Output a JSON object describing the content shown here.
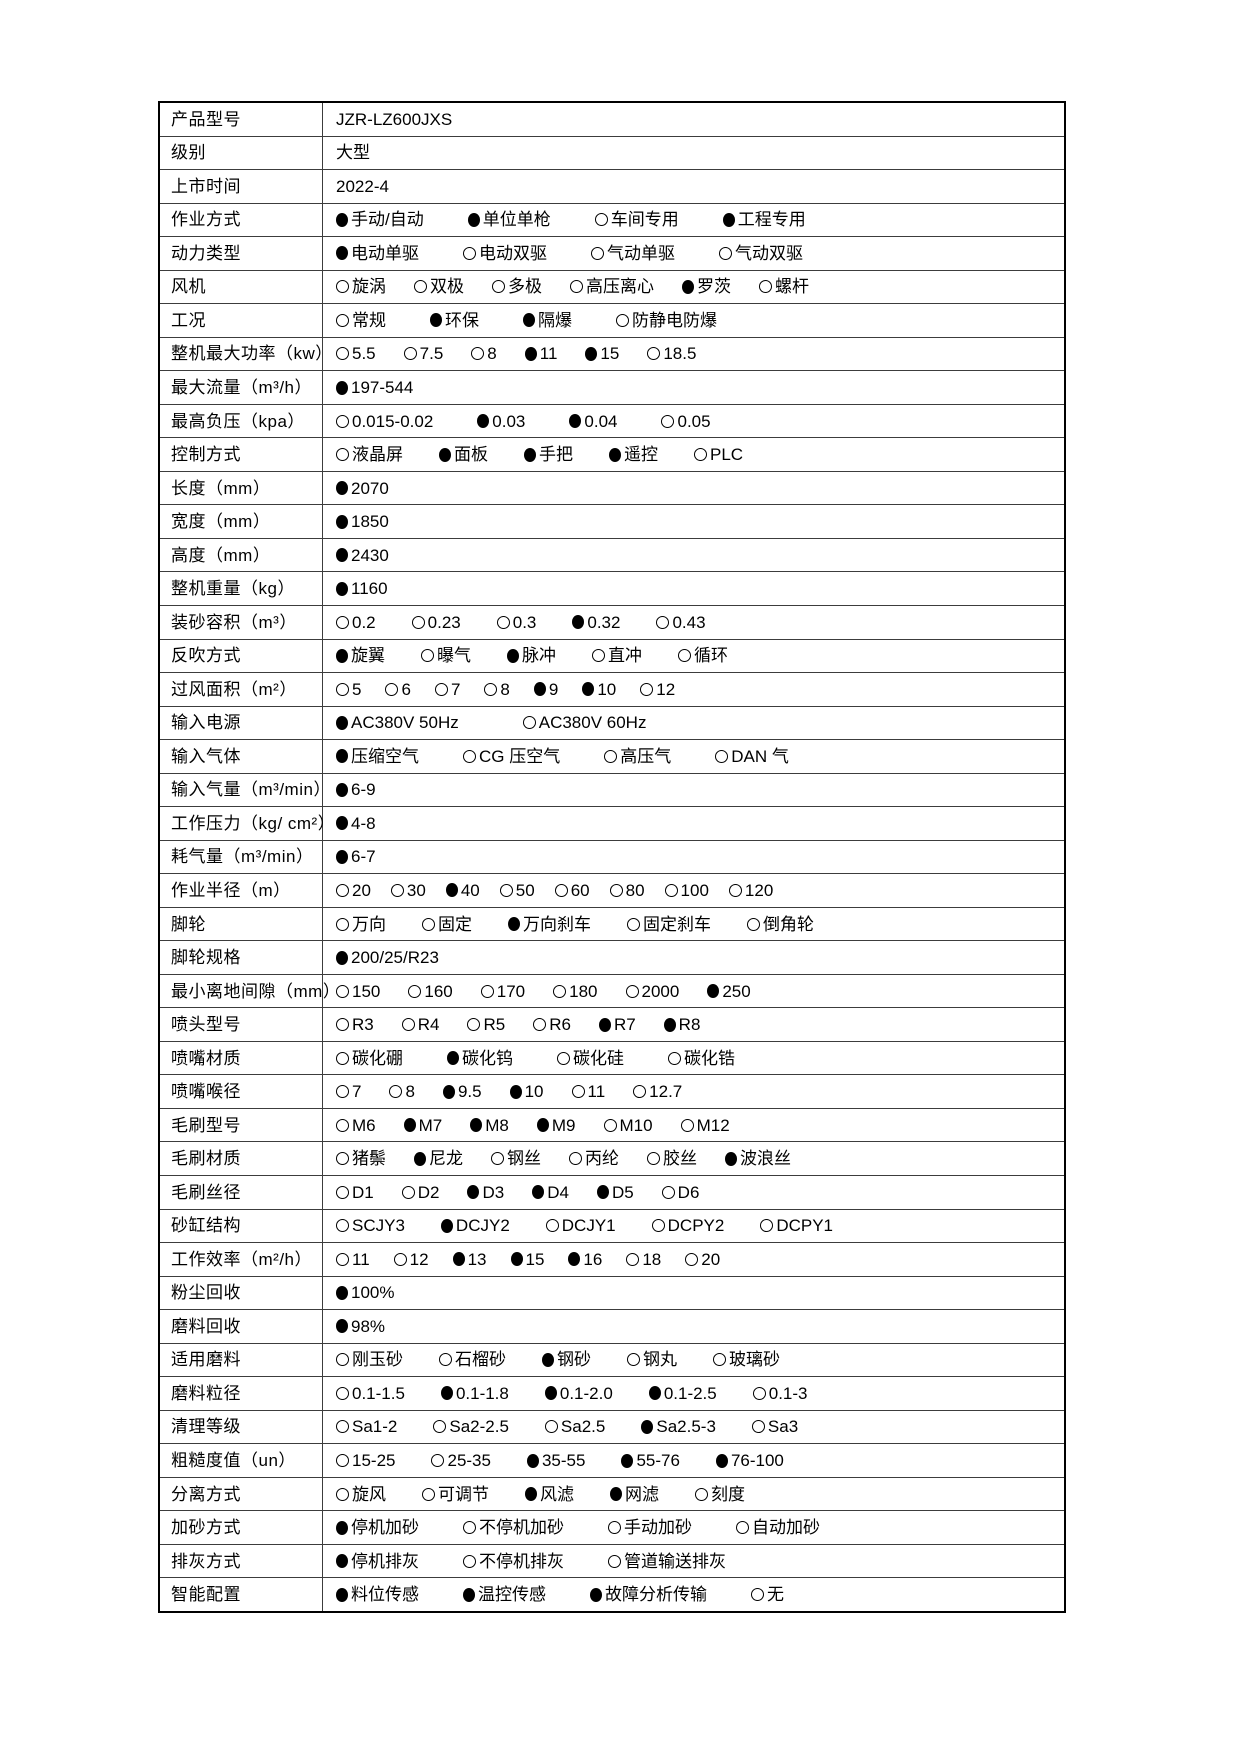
{
  "colors": {
    "border": "#000000",
    "text": "#000000",
    "background": "#ffffff"
  },
  "document": {
    "rows": [
      {
        "label": "产品型号",
        "options": [
          {
            "marker": "none",
            "text": "JZR-LZ600JXS"
          }
        ]
      },
      {
        "label": "级别",
        "options": [
          {
            "marker": "none",
            "text": "大型"
          }
        ]
      },
      {
        "label": "上市时间",
        "options": [
          {
            "marker": "none",
            "text": "2022-4"
          }
        ]
      },
      {
        "label": "作业方式",
        "options": [
          {
            "marker": "filled",
            "text": "手动/自动"
          },
          {
            "marker": "filled",
            "text": "单位单枪"
          },
          {
            "marker": "empty",
            "text": "车间专用"
          },
          {
            "marker": "filled",
            "text": "工程专用"
          }
        ]
      },
      {
        "label": "动力类型",
        "options": [
          {
            "marker": "filled",
            "text": "电动单驱"
          },
          {
            "marker": "empty",
            "text": "电动双驱"
          },
          {
            "marker": "empty",
            "text": "气动单驱"
          },
          {
            "marker": "empty",
            "text": "气动双驱"
          }
        ]
      },
      {
        "label": "风机",
        "options": [
          {
            "marker": "empty",
            "text": "旋涡"
          },
          {
            "marker": "empty",
            "text": "双极"
          },
          {
            "marker": "empty",
            "text": "多极"
          },
          {
            "marker": "empty",
            "text": "高压离心"
          },
          {
            "marker": "filled",
            "text": "罗茨"
          },
          {
            "marker": "empty",
            "text": "螺杆"
          }
        ]
      },
      {
        "label": "工况",
        "options": [
          {
            "marker": "empty",
            "text": "常规"
          },
          {
            "marker": "filled",
            "text": "环保"
          },
          {
            "marker": "filled",
            "text": "隔爆"
          },
          {
            "marker": "empty",
            "text": "防静电防爆"
          }
        ]
      },
      {
        "label": "整机最大功率（kw）",
        "options": [
          {
            "marker": "empty",
            "text": "5.5"
          },
          {
            "marker": "empty",
            "text": "7.5"
          },
          {
            "marker": "empty",
            "text": "8"
          },
          {
            "marker": "filled",
            "text": "11"
          },
          {
            "marker": "filled",
            "text": "15"
          },
          {
            "marker": "empty",
            "text": "18.5"
          }
        ]
      },
      {
        "label": "最大流量（m³/h）",
        "options": [
          {
            "marker": "filled",
            "text": "197-544"
          }
        ]
      },
      {
        "label": "最高负压（kpa）",
        "options": [
          {
            "marker": "empty",
            "text": "0.015-0.02"
          },
          {
            "marker": "filled",
            "text": "0.03"
          },
          {
            "marker": "filled",
            "text": "0.04"
          },
          {
            "marker": "empty",
            "text": "0.05"
          }
        ]
      },
      {
        "label": "控制方式",
        "options": [
          {
            "marker": "empty",
            "text": "液晶屏"
          },
          {
            "marker": "filled",
            "text": "面板"
          },
          {
            "marker": "filled",
            "text": "手把"
          },
          {
            "marker": "filled",
            "text": "遥控"
          },
          {
            "marker": "empty",
            "text": "PLC"
          }
        ]
      },
      {
        "label": "长度（mm）",
        "options": [
          {
            "marker": "filled",
            "text": "2070"
          }
        ]
      },
      {
        "label": "宽度（mm）",
        "options": [
          {
            "marker": "filled",
            "text": "1850"
          }
        ]
      },
      {
        "label": "高度（mm）",
        "options": [
          {
            "marker": "filled",
            "text": "2430"
          }
        ]
      },
      {
        "label": "整机重量（kg）",
        "options": [
          {
            "marker": "filled",
            "text": "1160"
          }
        ]
      },
      {
        "label": "装砂容积（m³）",
        "options": [
          {
            "marker": "empty",
            "text": "0.2"
          },
          {
            "marker": "empty",
            "text": "0.23"
          },
          {
            "marker": "empty",
            "text": "0.3"
          },
          {
            "marker": "filled",
            "text": "0.32"
          },
          {
            "marker": "empty",
            "text": "0.43"
          }
        ]
      },
      {
        "label": "反吹方式",
        "options": [
          {
            "marker": "filled",
            "text": "旋翼"
          },
          {
            "marker": "empty",
            "text": "曝气"
          },
          {
            "marker": "filled",
            "text": "脉冲"
          },
          {
            "marker": "empty",
            "text": "直冲"
          },
          {
            "marker": "empty",
            "text": "循环"
          }
        ]
      },
      {
        "label": "过风面积（m²）",
        "options": [
          {
            "marker": "empty",
            "text": "5"
          },
          {
            "marker": "empty",
            "text": "6"
          },
          {
            "marker": "empty",
            "text": "7"
          },
          {
            "marker": "empty",
            "text": "8"
          },
          {
            "marker": "filled",
            "text": "9"
          },
          {
            "marker": "filled",
            "text": "10"
          },
          {
            "marker": "empty",
            "text": "12"
          }
        ]
      },
      {
        "label": "输入电源",
        "options": [
          {
            "marker": "filled",
            "text": "AC380V 50Hz"
          },
          {
            "marker": "empty",
            "text": "AC380V 60Hz"
          }
        ]
      },
      {
        "label": "输入气体",
        "options": [
          {
            "marker": "filled",
            "text": "压缩空气"
          },
          {
            "marker": "empty",
            "text": "CG 压空气"
          },
          {
            "marker": "empty",
            "text": "高压气"
          },
          {
            "marker": "empty",
            "text": "DAN 气"
          }
        ]
      },
      {
        "label": "输入气量（m³/min）",
        "options": [
          {
            "marker": "filled",
            "text": "6-9"
          }
        ]
      },
      {
        "label": "工作压力（kg/ cm²）",
        "options": [
          {
            "marker": "filled",
            "text": "4-8"
          }
        ]
      },
      {
        "label": "耗气量（m³/min）",
        "options": [
          {
            "marker": "filled",
            "text": "6-7"
          }
        ]
      },
      {
        "label": "作业半径（m）",
        "options": [
          {
            "marker": "empty",
            "text": "20"
          },
          {
            "marker": "empty",
            "text": "30"
          },
          {
            "marker": "filled",
            "text": "40"
          },
          {
            "marker": "empty",
            "text": "50"
          },
          {
            "marker": "empty",
            "text": "60"
          },
          {
            "marker": "empty",
            "text": "80"
          },
          {
            "marker": "empty",
            "text": "100"
          },
          {
            "marker": "empty",
            "text": "120"
          }
        ]
      },
      {
        "label": "脚轮",
        "options": [
          {
            "marker": "empty",
            "text": "万向"
          },
          {
            "marker": "empty",
            "text": "固定"
          },
          {
            "marker": "filled",
            "text": "万向刹车"
          },
          {
            "marker": "empty",
            "text": "固定刹车"
          },
          {
            "marker": "empty",
            "text": "倒角轮"
          }
        ]
      },
      {
        "label": "脚轮规格",
        "options": [
          {
            "marker": "filled",
            "text": "200/25/R23"
          }
        ]
      },
      {
        "label": "最小离地间隙（mm）",
        "options": [
          {
            "marker": "empty",
            "text": "150"
          },
          {
            "marker": "empty",
            "text": "160"
          },
          {
            "marker": "empty",
            "text": "170"
          },
          {
            "marker": "empty",
            "text": "180"
          },
          {
            "marker": "empty",
            "text": "2000"
          },
          {
            "marker": "filled",
            "text": "250"
          }
        ]
      },
      {
        "label": "喷头型号",
        "options": [
          {
            "marker": "empty",
            "text": "R3"
          },
          {
            "marker": "empty",
            "text": "R4"
          },
          {
            "marker": "empty",
            "text": "R5"
          },
          {
            "marker": "empty",
            "text": "R6"
          },
          {
            "marker": "filled",
            "text": "R7"
          },
          {
            "marker": "filled",
            "text": "R8"
          }
        ]
      },
      {
        "label": "喷嘴材质",
        "options": [
          {
            "marker": "empty",
            "text": "碳化硼"
          },
          {
            "marker": "filled",
            "text": "碳化钨"
          },
          {
            "marker": "empty",
            "text": "碳化硅"
          },
          {
            "marker": "empty",
            "text": "碳化锆"
          }
        ]
      },
      {
        "label": "喷嘴喉径",
        "options": [
          {
            "marker": "empty",
            "text": "7"
          },
          {
            "marker": "empty",
            "text": "8"
          },
          {
            "marker": "filled",
            "text": "9.5"
          },
          {
            "marker": "filled",
            "text": "10"
          },
          {
            "marker": "empty",
            "text": "11"
          },
          {
            "marker": "empty",
            "text": "12.7"
          }
        ]
      },
      {
        "label": "毛刷型号",
        "options": [
          {
            "marker": "empty",
            "text": "M6"
          },
          {
            "marker": "filled",
            "text": "M7"
          },
          {
            "marker": "filled",
            "text": "M8"
          },
          {
            "marker": "filled",
            "text": "M9"
          },
          {
            "marker": "empty",
            "text": "M10"
          },
          {
            "marker": "empty",
            "text": "M12"
          }
        ]
      },
      {
        "label": "毛刷材质",
        "options": [
          {
            "marker": "empty",
            "text": "猪鬃"
          },
          {
            "marker": "filled",
            "text": "尼龙"
          },
          {
            "marker": "empty",
            "text": "钢丝"
          },
          {
            "marker": "empty",
            "text": "丙纶"
          },
          {
            "marker": "empty",
            "text": "胶丝"
          },
          {
            "marker": "filled",
            "text": "波浪丝"
          }
        ]
      },
      {
        "label": "毛刷丝径",
        "options": [
          {
            "marker": "empty",
            "text": "D1"
          },
          {
            "marker": "empty",
            "text": "D2"
          },
          {
            "marker": "filled",
            "text": "D3"
          },
          {
            "marker": "filled",
            "text": "D4"
          },
          {
            "marker": "filled",
            "text": "D5"
          },
          {
            "marker": "empty",
            "text": "D6"
          }
        ]
      },
      {
        "label": "砂缸结构",
        "options": [
          {
            "marker": "empty",
            "text": "SCJY3"
          },
          {
            "marker": "filled",
            "text": "DCJY2"
          },
          {
            "marker": "empty",
            "text": "DCJY1"
          },
          {
            "marker": "empty",
            "text": "DCPY2"
          },
          {
            "marker": "empty",
            "text": "DCPY1"
          }
        ]
      },
      {
        "label": "工作效率（m²/h）",
        "options": [
          {
            "marker": "empty",
            "text": "11"
          },
          {
            "marker": "empty",
            "text": "12"
          },
          {
            "marker": "filled",
            "text": "13"
          },
          {
            "marker": "filled",
            "text": "15"
          },
          {
            "marker": "filled",
            "text": "16"
          },
          {
            "marker": "empty",
            "text": "18"
          },
          {
            "marker": "empty",
            "text": "20"
          }
        ]
      },
      {
        "label": "粉尘回收",
        "options": [
          {
            "marker": "filled",
            "text": "100%"
          }
        ]
      },
      {
        "label": "磨料回收",
        "options": [
          {
            "marker": "filled",
            "text": "98%"
          }
        ]
      },
      {
        "label": "适用磨料",
        "options": [
          {
            "marker": "empty",
            "text": "刚玉砂"
          },
          {
            "marker": "empty",
            "text": "石榴砂"
          },
          {
            "marker": "filled",
            "text": "钢砂"
          },
          {
            "marker": "empty",
            "text": "钢丸"
          },
          {
            "marker": "empty",
            "text": "玻璃砂"
          }
        ]
      },
      {
        "label": "磨料粒径",
        "options": [
          {
            "marker": "empty",
            "text": "0.1-1.5"
          },
          {
            "marker": "filled",
            "text": "0.1-1.8"
          },
          {
            "marker": "filled",
            "text": "0.1-2.0"
          },
          {
            "marker": "filled",
            "text": "0.1-2.5"
          },
          {
            "marker": "empty",
            "text": "0.1-3"
          }
        ]
      },
      {
        "label": "清理等级",
        "options": [
          {
            "marker": "empty",
            "text": "Sa1-2"
          },
          {
            "marker": "empty",
            "text": "Sa2-2.5"
          },
          {
            "marker": "empty",
            "text": "Sa2.5"
          },
          {
            "marker": "filled",
            "text": "Sa2.5-3"
          },
          {
            "marker": "empty",
            "text": "Sa3"
          }
        ]
      },
      {
        "label": "粗糙度值（un）",
        "options": [
          {
            "marker": "empty",
            "text": "15-25"
          },
          {
            "marker": "empty",
            "text": "25-35"
          },
          {
            "marker": "filled",
            "text": "35-55"
          },
          {
            "marker": "filled",
            "text": "55-76"
          },
          {
            "marker": "filled",
            "text": "76-100"
          }
        ]
      },
      {
        "label": "分离方式",
        "options": [
          {
            "marker": "empty",
            "text": "旋风"
          },
          {
            "marker": "empty",
            "text": "可调节"
          },
          {
            "marker": "filled",
            "text": "风滤"
          },
          {
            "marker": "filled",
            "text": "网滤"
          },
          {
            "marker": "empty",
            "text": "刻度"
          }
        ]
      },
      {
        "label": "加砂方式",
        "options": [
          {
            "marker": "filled",
            "text": "停机加砂"
          },
          {
            "marker": "empty",
            "text": "不停机加砂"
          },
          {
            "marker": "empty",
            "text": "手动加砂"
          },
          {
            "marker": "empty",
            "text": "自动加砂"
          }
        ]
      },
      {
        "label": "排灰方式",
        "options": [
          {
            "marker": "filled",
            "text": "停机排灰"
          },
          {
            "marker": "empty",
            "text": "不停机排灰"
          },
          {
            "marker": "empty",
            "text": "管道输送排灰"
          }
        ]
      },
      {
        "label": "智能配置",
        "options": [
          {
            "marker": "filled",
            "text": "料位传感"
          },
          {
            "marker": "filled",
            "text": "温控传感"
          },
          {
            "marker": "filled",
            "text": "故障分析传输"
          },
          {
            "marker": "empty",
            "text": "无"
          }
        ]
      }
    ]
  }
}
